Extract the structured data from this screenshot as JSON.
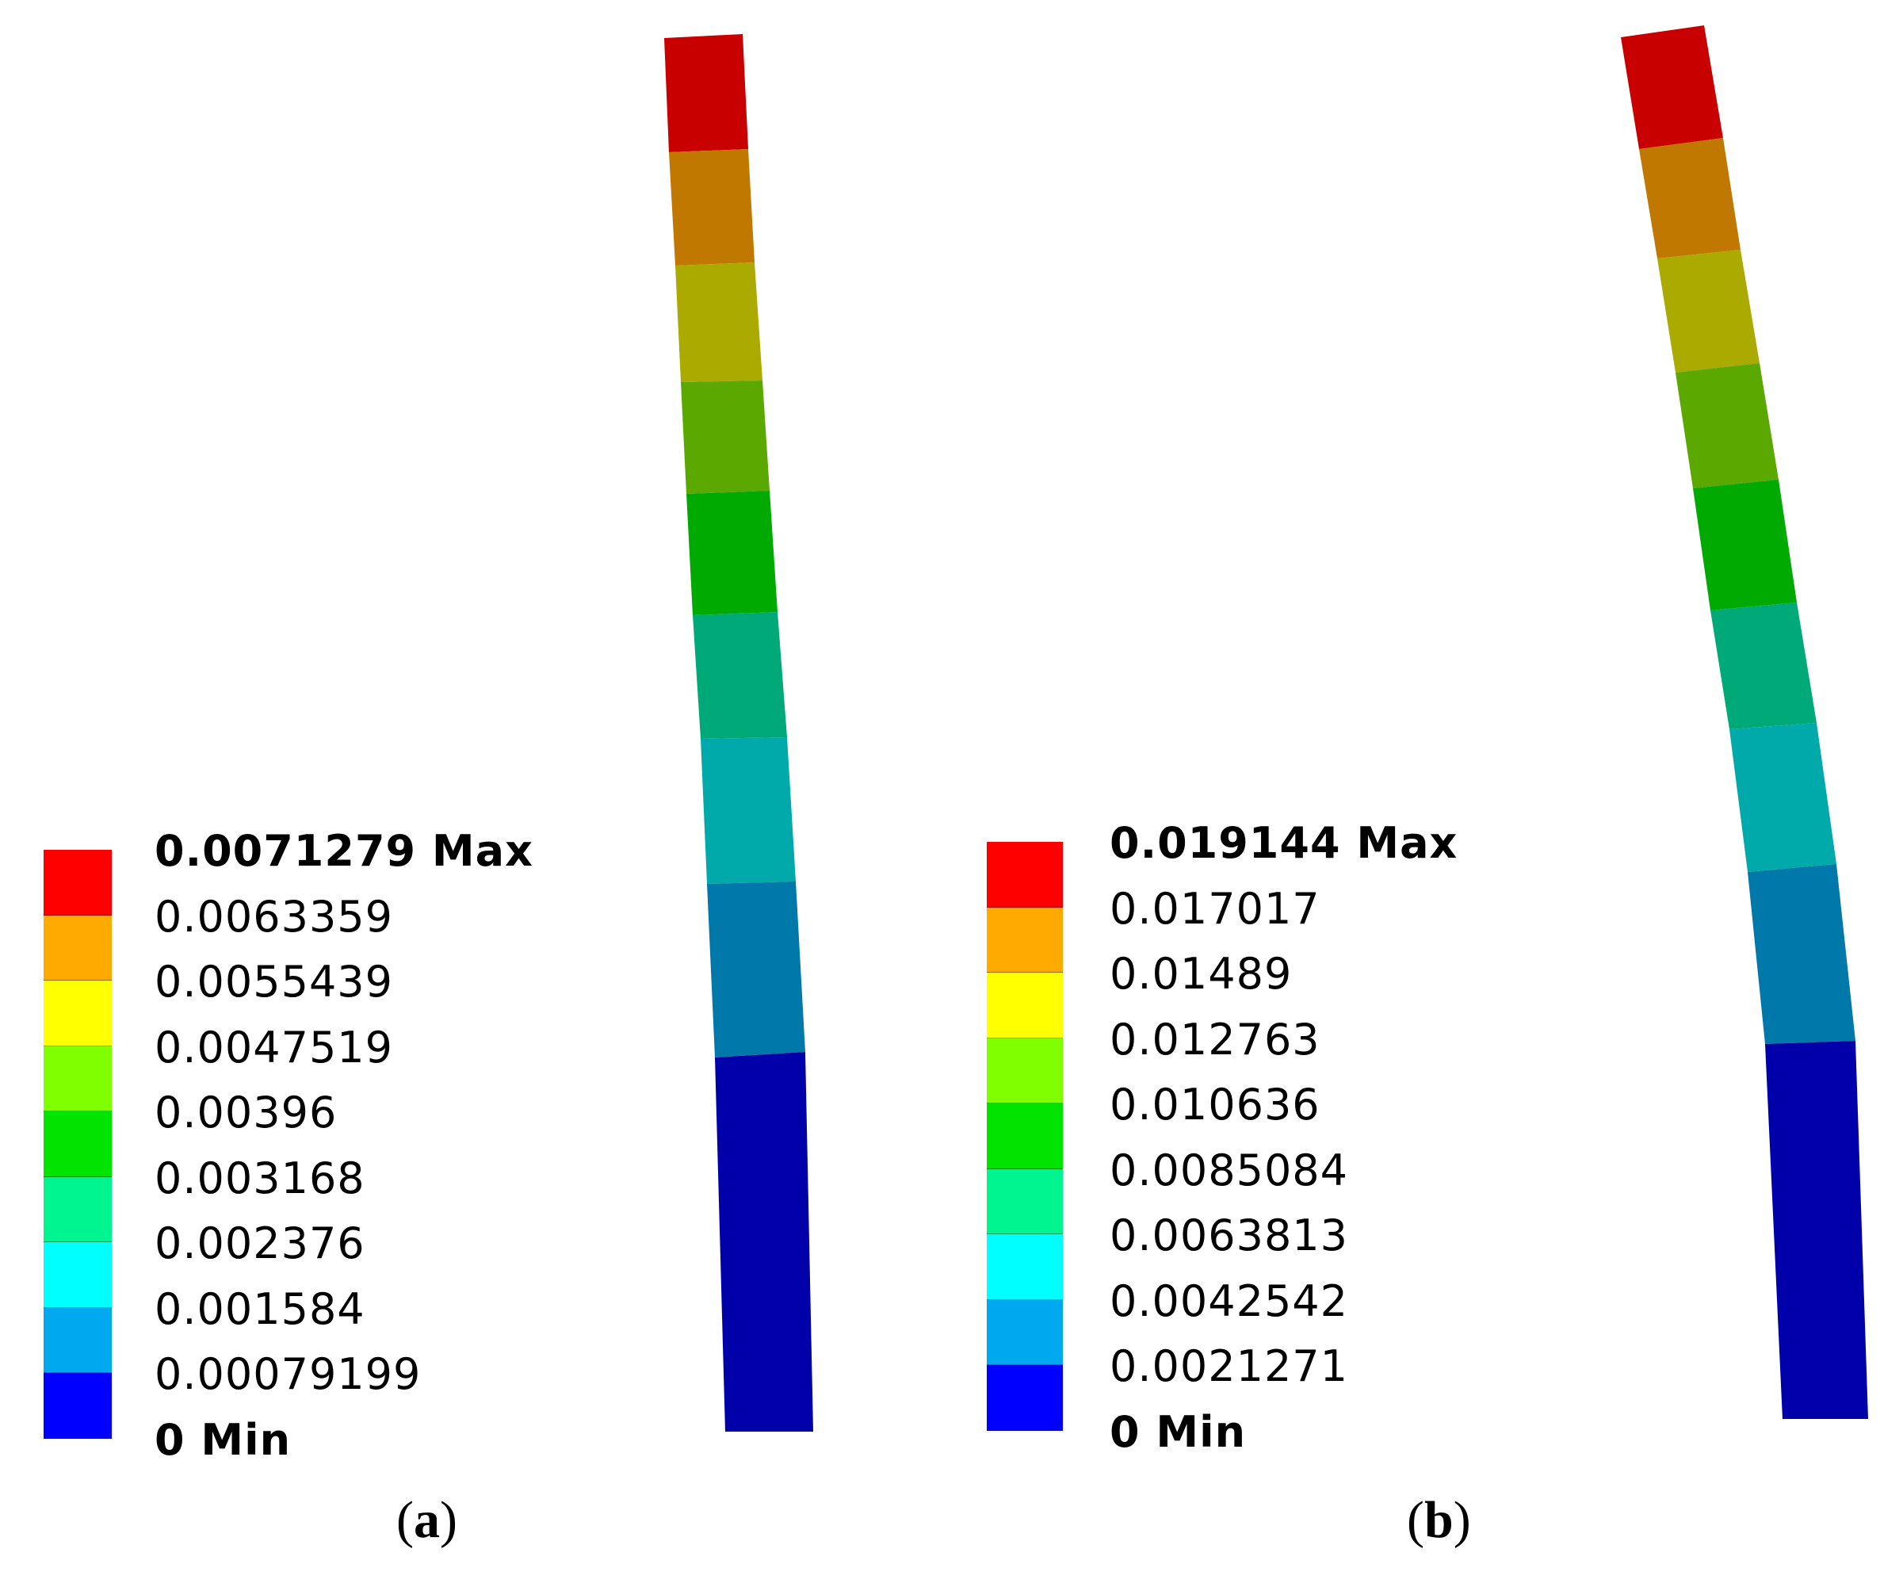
{
  "chart_data": [
    {
      "type": "heatmap",
      "title": "(a)",
      "caption": "(a)",
      "description": "Displacement contour of a deformed vertical beam with discrete color bands",
      "legend": {
        "position": "left-bottom",
        "labels": [
          "0.0071279 Max",
          "0.0063359",
          "0.0055439",
          "0.0047519",
          "0.00396",
          "0.003168",
          "0.002376",
          "0.001584",
          "0.00079199",
          "0 Min"
        ],
        "values": [
          0.0071279,
          0.0063359,
          0.0055439,
          0.0047519,
          0.00396,
          0.003168,
          0.002376,
          0.001584,
          0.00079199,
          0
        ],
        "max": 0.0071279,
        "min": 0,
        "colors": [
          "#ff0000",
          "#ffaa00",
          "#ffff00",
          "#80ff00",
          "#00e400",
          "#00f590",
          "#00ffff",
          "#00a8f0",
          "#0000ff"
        ]
      },
      "beam_bands_top_to_bottom": [
        "#c80000",
        "#c07800",
        "#aaaa00",
        "#5aa800",
        "#00aa00",
        "#00aa78",
        "#00aaaa",
        "#0078aa",
        "#0000aa"
      ]
    },
    {
      "type": "heatmap",
      "title": "(b)",
      "caption": "(b)",
      "description": "Displacement contour of a deformed vertical beam with discrete color bands",
      "legend": {
        "position": "left-bottom",
        "labels": [
          "0.019144 Max",
          "0.017017",
          "0.01489",
          "0.012763",
          "0.010636",
          "0.0085084",
          "0.0063813",
          "0.0042542",
          "0.0021271",
          "0 Min"
        ],
        "values": [
          0.019144,
          0.017017,
          0.01489,
          0.012763,
          0.010636,
          0.0085084,
          0.0063813,
          0.0042542,
          0.0021271,
          0
        ],
        "max": 0.019144,
        "min": 0,
        "colors": [
          "#ff0000",
          "#ffaa00",
          "#ffff00",
          "#80ff00",
          "#00e400",
          "#00f590",
          "#00ffff",
          "#00a8f0",
          "#0000ff"
        ]
      },
      "beam_bands_top_to_bottom": [
        "#c80000",
        "#c07800",
        "#aaaa00",
        "#5aa800",
        "#00aa00",
        "#00aa78",
        "#00aaaa",
        "#0078aa",
        "#0000aa"
      ]
    }
  ],
  "panels": {
    "a": {
      "caption_letter": "a",
      "labels": [
        "0.0071279 Max",
        "0.0063359",
        "0.0055439",
        "0.0047519",
        "0.00396",
        "0.003168",
        "0.002376",
        "0.001584",
        "0.00079199",
        "0 Min"
      ]
    },
    "b": {
      "caption_letter": "b",
      "labels": [
        "0.019144 Max",
        "0.017017",
        "0.01489",
        "0.012763",
        "0.010636",
        "0.0085084",
        "0.0063813",
        "0.0042542",
        "0.0021271",
        "0 Min"
      ]
    }
  },
  "colors": {
    "legend": [
      "#ff0000",
      "#ffaa00",
      "#ffff00",
      "#80ff00",
      "#00e400",
      "#00f590",
      "#00ffff",
      "#00a8f0",
      "#0000ff"
    ],
    "beam": [
      "#c80000",
      "#c07800",
      "#aaaa00",
      "#5aa800",
      "#00aa00",
      "#00aa78",
      "#00aaaa",
      "#0078aa",
      "#0000aa"
    ]
  }
}
